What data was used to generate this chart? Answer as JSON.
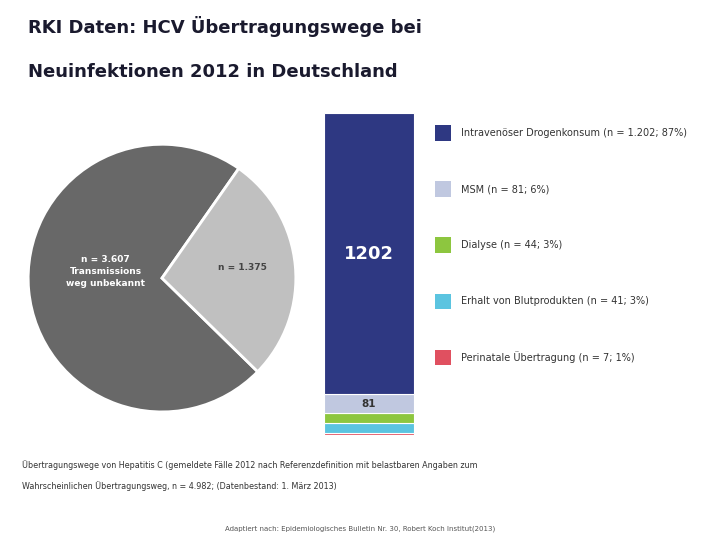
{
  "title_line1": "RKI Daten: HCV Übertragungswege bei",
  "title_line2": "Neuinfektionen 2012 in Deutschland",
  "bg_color": "#ffffff",
  "green_line_color": "#8dc63f",
  "pie_values": [
    3607,
    1375
  ],
  "pie_colors": [
    "#686868",
    "#c0c0c0"
  ],
  "pie_startangle": 55,
  "pie_label_unknown": "n = 3.607\nTransmissions\nweg unbekannt",
  "pie_label_known": "n = 1.375",
  "bar_data": [
    {
      "label": "Intravenöser Drogenkonsum",
      "value": 1202,
      "color": "#2e3882",
      "text": "1202"
    },
    {
      "label": "MSM",
      "value": 81,
      "color": "#c0c8e0",
      "text": "81"
    },
    {
      "label": "Dialyse",
      "value": 44,
      "color": "#8dc63f",
      "text": ""
    },
    {
      "label": "Erhalt von Blutprodukten",
      "value": 41,
      "color": "#5bc4e0",
      "text": ""
    },
    {
      "label": "Perinatale Übertragung",
      "value": 7,
      "color": "#e05060",
      "text": ""
    }
  ],
  "legend_entries": [
    {
      "label": "Intravenöser Drogenkonsum (n = 1.202; 87%)",
      "color": "#2e3882"
    },
    {
      "label": "MSM (n = 81; 6%)",
      "color": "#c0c8e0"
    },
    {
      "label": "Dialyse (n = 44; 3%)",
      "color": "#8dc63f"
    },
    {
      "label": "Erhalt von Blutprodukten (n = 41; 3%)",
      "color": "#5bc4e0"
    },
    {
      "label": "Perinatale Übertragung (n = 7; 1%)",
      "color": "#e05060"
    }
  ],
  "footnote_line1": "Übertragungswege von Hepatitis C (gemeldete Fälle 2012 nach Referenzdefinition mit belastbaren Angaben zum",
  "footnote_line2": "Wahrscheinlichen Übertragungsweg, n = 4.982; (Datenbestand: 1. März 2013)",
  "source_text": "Adaptiert nach: Epidemiologisches Bulletin Nr. 30, Robert Koch Institut(2013)"
}
